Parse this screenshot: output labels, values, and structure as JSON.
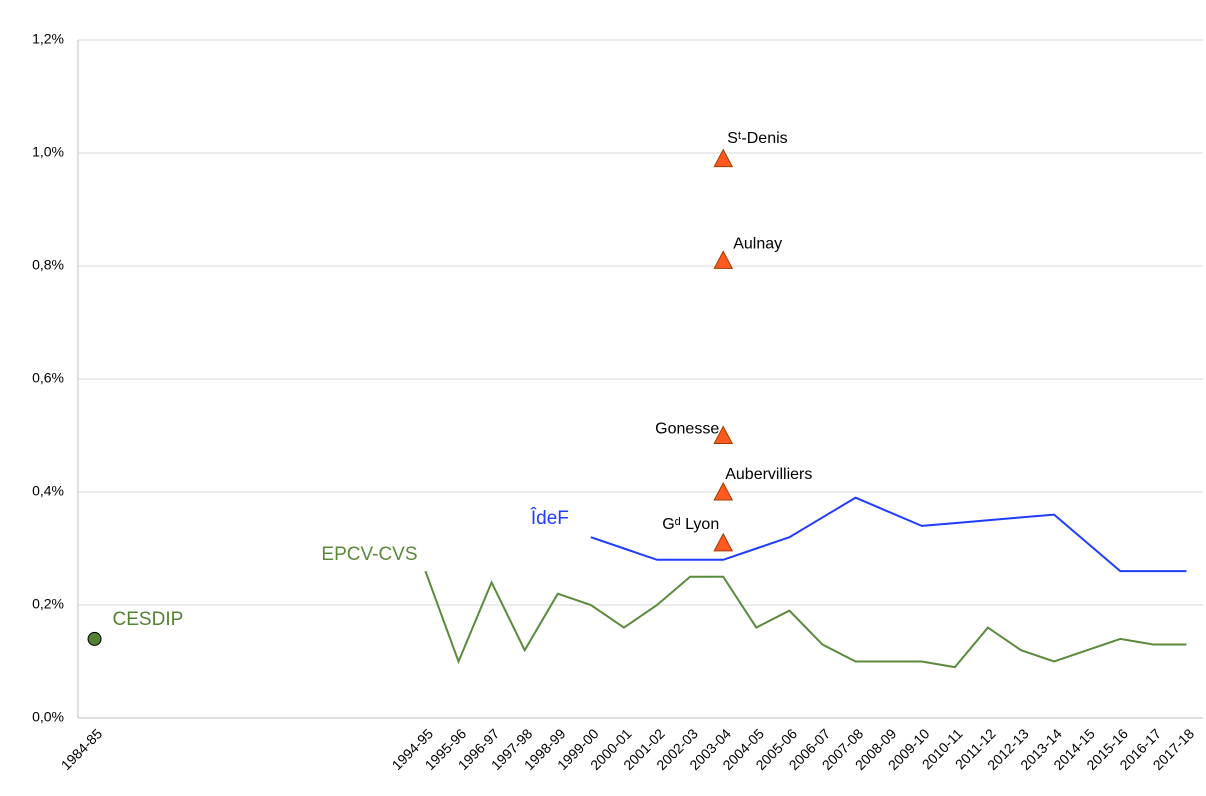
{
  "chart_data": {
    "type": "line",
    "categories": [
      "1984-85",
      null,
      null,
      null,
      null,
      null,
      null,
      null,
      null,
      null,
      "1994-95",
      "1995-96",
      "1996-97",
      "1997-98",
      "1998-99",
      "1999-00",
      "2000-01",
      "2001-02",
      "2002-03",
      "2003-04",
      "2004-05",
      "2005-06",
      "2006-07",
      "2007-08",
      "2008-09",
      "2009-10",
      "2010-11",
      "2011-12",
      "2012-13",
      "2013-14",
      "2014-15",
      "2015-16",
      "2016-17",
      "2017-18"
    ],
    "ylim": [
      0,
      1.2
    ],
    "yticks": [
      {
        "value": 0,
        "label": "0,0%"
      },
      {
        "value": 0.2,
        "label": "0,2%"
      },
      {
        "value": 0.4,
        "label": "0,4%"
      },
      {
        "value": 0.6,
        "label": "0,6%"
      },
      {
        "value": 0.8,
        "label": "0,8%"
      },
      {
        "value": 1.0,
        "label": "1,0%"
      },
      {
        "value": 1.2,
        "label": "1,2%"
      }
    ],
    "grid": true,
    "series": [
      {
        "name": "CESDIP",
        "color": "#548235",
        "marker": "circle",
        "values": [
          0.14,
          null,
          null,
          null,
          null,
          null,
          null,
          null,
          null,
          null,
          null,
          null,
          null,
          null,
          null,
          null,
          null,
          null,
          null,
          null,
          null,
          null,
          null,
          null,
          null,
          null,
          null,
          null,
          null,
          null,
          null,
          null,
          null,
          null
        ]
      },
      {
        "name": "EPCV-CVS",
        "color": "#5b8a3c",
        "values": [
          null,
          null,
          null,
          null,
          null,
          null,
          null,
          null,
          null,
          null,
          0.26,
          0.1,
          0.24,
          0.12,
          0.22,
          0.2,
          0.16,
          0.2,
          0.25,
          0.25,
          0.16,
          0.19,
          0.13,
          0.1,
          0.1,
          0.1,
          0.09,
          0.16,
          0.12,
          0.1,
          0.12,
          0.14,
          0.13,
          0.13
        ]
      },
      {
        "name": "ÎdeF",
        "color": "#1f3cff",
        "values": [
          null,
          null,
          null,
          null,
          null,
          null,
          null,
          null,
          null,
          null,
          null,
          null,
          null,
          null,
          null,
          0.32,
          0.3,
          0.28,
          0.28,
          0.28,
          0.3,
          0.32,
          0.355,
          0.39,
          0.365,
          0.34,
          0.345,
          0.35,
          0.355,
          0.36,
          0.31,
          0.26,
          0.26,
          0.26
        ]
      }
    ],
    "points": {
      "color": "#ff5a1f",
      "category": "2003-04",
      "items": [
        {
          "label": "Sᵗ-Denis",
          "value": 0.99
        },
        {
          "label": "Aulnay",
          "value": 0.81
        },
        {
          "label": "Gonesse",
          "value": 0.5
        },
        {
          "label": "Aubervilliers",
          "value": 0.4
        },
        {
          "label": "Gᵈ Lyon",
          "value": 0.31
        }
      ]
    }
  }
}
